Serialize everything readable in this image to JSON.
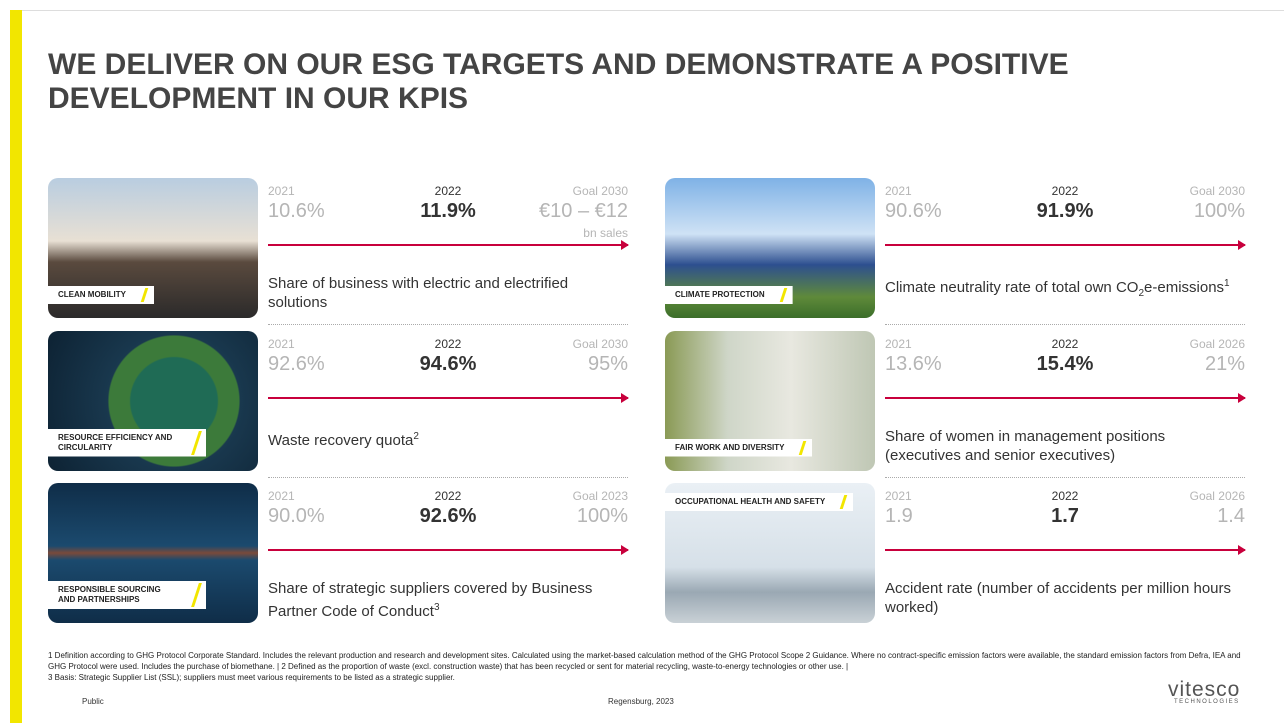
{
  "header": {
    "title": "WE DELIVER ON OUR ESG TARGETS AND DEMONSTRATE A POSITIVE DEVELOPMENT IN OUR KPIS"
  },
  "kpis": [
    {
      "label": "CLEAN MOBILITY",
      "year1": "2021",
      "value1": "10.6%",
      "year2": "2022",
      "value2": "11.9%",
      "goal_label": "Goal 2030",
      "goal": "€10 – €12",
      "goal_note": "bn sales",
      "description": {
        "text": "Share of business with electric and electrified solutions"
      }
    },
    {
      "label": "CLIMATE PROTECTION",
      "year1": "2021",
      "value1": "90.6%",
      "year2": "2022",
      "value2": "91.9%",
      "goal_label": "Goal 2030",
      "goal": "100%",
      "description": {
        "text": "Climate neutrality rate of total own CO",
        "sub": "2",
        "text2": "e-emissions",
        "sup": "1"
      }
    },
    {
      "label": "RESOURCE EFFICIENCY AND CIRCULARITY",
      "year1": "2021",
      "value1": "92.6%",
      "year2": "2022",
      "value2": "94.6%",
      "goal_label": "Goal 2030",
      "goal": "95%",
      "description": {
        "text": "Waste recovery quota",
        "sup": "2"
      }
    },
    {
      "label": "FAIR WORK AND DIVERSITY",
      "year1": "2021",
      "value1": "13.6%",
      "year2": "2022",
      "value2": "15.4%",
      "goal_label": "Goal 2026",
      "goal": "21%",
      "description": {
        "text": "Share of women in management positions (executives and senior executives)"
      }
    },
    {
      "label": "RESPONSIBLE SOURCING AND PARTNERSHIPS",
      "year1": "2021",
      "value1": "90.0%",
      "year2": "2022",
      "value2": "92.6%",
      "goal_label": "Goal 2023",
      "goal": "100%",
      "description": {
        "text": "Share of strategic suppliers covered by Business Partner Code of Conduct",
        "sup": "3"
      }
    },
    {
      "label": "OCCUPATIONAL HEALTH AND SAFETY",
      "year1": "2021",
      "value1": "1.9",
      "year2": "2022",
      "value2": "1.7",
      "goal_label": "Goal 2026",
      "goal": "1.4",
      "description": {
        "text": "Accident rate (number of accidents per million hours worked)"
      }
    }
  ],
  "footnotes": [
    "1 Definition according to GHG Protocol Corporate Standard. Includes the relevant production and research and development sites. Calculated using the market-based calculation method of the GHG Protocol Scope 2 Guidance. Where no contract-specific emission factors were available, the standard emission factors from Defra, IEA and GHG Protocol were used. Includes the purchase of biomethane. | 2 Defined as the proportion of waste (excl. construction waste)  that has been recycled or sent for material recycling, waste-to-energy technologies or other use. |",
    "3 Basis: Strategic Supplier List (SSL); suppliers must meet various requirements to be listed as a strategic supplier."
  ],
  "footer": {
    "classification": "Public",
    "location": "Regensburg, 2023",
    "logo": "vitesco",
    "logo_sub": "TECHNOLOGIES"
  }
}
